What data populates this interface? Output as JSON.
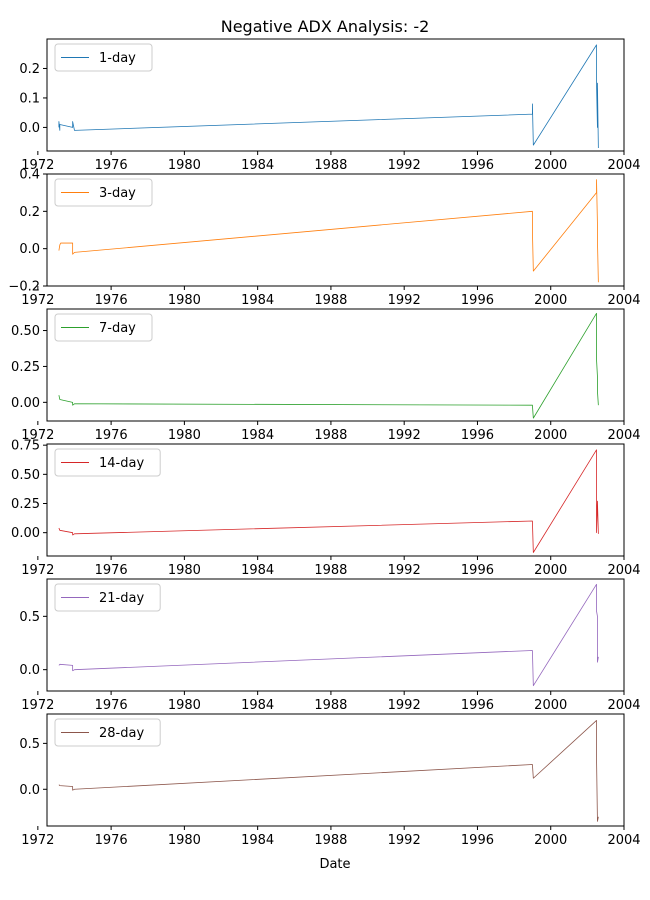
{
  "chart_data": {
    "type": "line",
    "title": "Negative ADX Analysis: -2",
    "xlabel": "Date",
    "xlim": [
      1972.5,
      2004
    ],
    "x_ticks": [
      1972,
      1976,
      1980,
      1984,
      1988,
      1992,
      1996,
      2000,
      2004
    ],
    "legend_position": "top-left",
    "grid": false,
    "panels": [
      {
        "series_name": "1-day",
        "color": "#1f77b4",
        "ylim": [
          -0.08,
          0.3
        ],
        "y_ticks": [
          0.0,
          0.1,
          0.2
        ],
        "y_tick_labels": [
          "0.0",
          "0.1",
          "0.2"
        ],
        "x": [
          1973.15,
          1973.15,
          1973.2,
          1973.2,
          1973.9,
          1973.9,
          1974.0,
          1999.0,
          1999.0,
          1999.05,
          2002.5,
          2002.5,
          2002.55,
          2002.55,
          2002.6
        ],
        "y": [
          0.0,
          0.02,
          -0.01,
          0.01,
          0.0,
          0.02,
          -0.01,
          0.045,
          0.08,
          -0.06,
          0.28,
          0.15,
          0.0,
          0.15,
          -0.07
        ]
      },
      {
        "series_name": "3-day",
        "color": "#ff7f0e",
        "ylim": [
          -0.2,
          0.4
        ],
        "y_ticks": [
          -0.2,
          0.0,
          0.2,
          0.4
        ],
        "y_tick_labels": [
          "−0.2",
          "0.0",
          "0.2",
          "0.4"
        ],
        "x": [
          1973.15,
          1973.2,
          1973.25,
          1973.9,
          1973.9,
          1974.0,
          1999.0,
          1999.0,
          1999.05,
          2002.5,
          2002.5,
          2002.55,
          2002.55,
          2002.6
        ],
        "y": [
          -0.01,
          0.02,
          0.03,
          0.03,
          -0.03,
          -0.02,
          0.2,
          0.1,
          -0.12,
          0.3,
          0.37,
          0.13,
          0.05,
          -0.18
        ]
      },
      {
        "series_name": "7-day",
        "color": "#2ca02c",
        "ylim": [
          -0.13,
          0.65
        ],
        "y_ticks": [
          0.0,
          0.25,
          0.5
        ],
        "y_tick_labels": [
          "0.00",
          "0.25",
          "0.50"
        ],
        "x": [
          1973.15,
          1973.2,
          1973.9,
          1973.9,
          1974.0,
          1999.0,
          1999.05,
          2002.5,
          2002.5,
          2002.55,
          2002.55,
          2002.6
        ],
        "y": [
          0.05,
          0.02,
          0.0,
          -0.02,
          -0.01,
          -0.02,
          -0.11,
          0.62,
          0.3,
          0.18,
          0.08,
          -0.02
        ]
      },
      {
        "series_name": "14-day",
        "color": "#d62728",
        "ylim": [
          -0.2,
          0.76
        ],
        "y_ticks": [
          0.0,
          0.25,
          0.5,
          0.75
        ],
        "y_tick_labels": [
          "0.00",
          "0.25",
          "0.50",
          "0.75"
        ],
        "x": [
          1973.15,
          1973.2,
          1973.9,
          1973.9,
          1974.0,
          1999.0,
          1999.05,
          2002.5,
          2002.5,
          2002.55,
          2002.6
        ],
        "y": [
          0.04,
          0.02,
          0.0,
          -0.02,
          -0.01,
          0.1,
          -0.17,
          0.71,
          0.0,
          0.27,
          -0.01
        ]
      },
      {
        "series_name": "21-day",
        "color": "#9467bd",
        "ylim": [
          -0.2,
          0.85
        ],
        "y_ticks": [
          0.0,
          0.5
        ],
        "y_tick_labels": [
          "0.0",
          "0.5"
        ],
        "x": [
          1973.15,
          1973.2,
          1973.9,
          1973.9,
          1974.0,
          1999.0,
          1999.05,
          2002.5,
          2002.5,
          2002.55,
          2002.55,
          2002.6
        ],
        "y": [
          0.04,
          0.05,
          0.04,
          -0.01,
          0.0,
          0.18,
          -0.15,
          0.8,
          0.55,
          0.5,
          0.07,
          0.12
        ]
      },
      {
        "series_name": "28-day",
        "color": "#8c564b",
        "ylim": [
          -0.4,
          0.82
        ],
        "y_ticks": [
          0.0,
          0.5
        ],
        "y_tick_labels": [
          "0.0",
          "0.5"
        ],
        "x": [
          1973.15,
          1973.2,
          1973.9,
          1973.9,
          1974.0,
          1999.0,
          1999.05,
          2002.5,
          2002.5,
          2002.55,
          2002.6
        ],
        "y": [
          0.05,
          0.04,
          0.03,
          -0.01,
          0.0,
          0.27,
          0.12,
          0.75,
          0.35,
          -0.35,
          -0.3
        ]
      }
    ]
  }
}
